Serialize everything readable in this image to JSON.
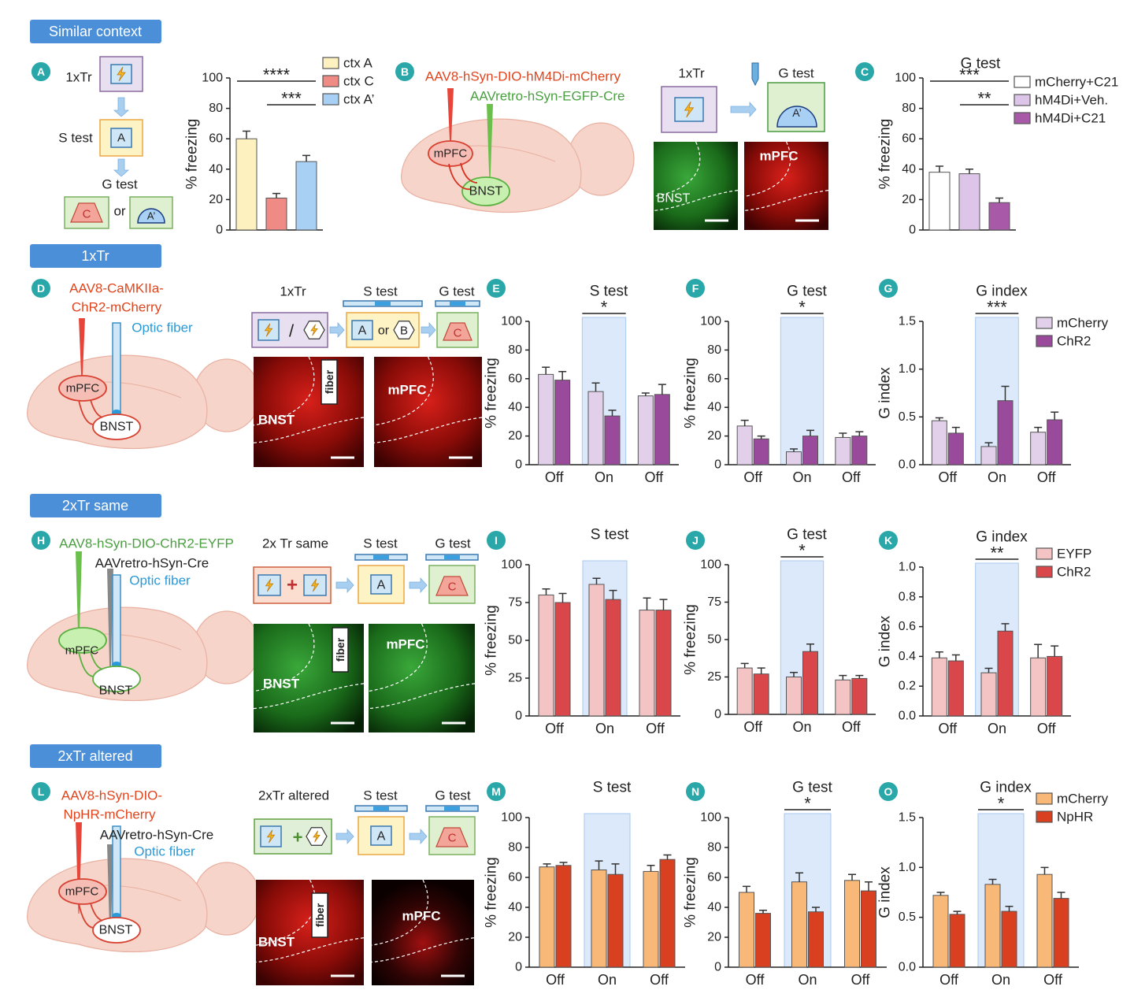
{
  "sections": [
    "Similar context",
    "1xTr",
    "2xTr same",
    "2xTr altered"
  ],
  "diagrams": {
    "A": {
      "panel": "A",
      "steps": [
        "1xTr",
        "S test",
        "G test"
      ],
      "contexts": [
        "A",
        "C",
        "A’"
      ],
      "or": "or"
    },
    "B": {
      "panel": "B",
      "vectors": [
        "AAV8-hSyn-DIO-hM4Di-mCherry",
        "AAVretro-hSyn-EGFP-Cre"
      ],
      "regions": [
        "mPFC",
        "BNST"
      ],
      "steps": [
        "1xTr",
        "G test"
      ],
      "context": "A’",
      "image_labels": [
        "BNST",
        "mPFC"
      ]
    },
    "D": {
      "panel": "D",
      "vectors": [
        "AAV8-CaMKIIa-",
        "ChR2-mCherry"
      ],
      "fiber": "Optic fiber",
      "regions": [
        "mPFC",
        "BNST"
      ],
      "steps": [
        "1xTr",
        "S test",
        "G test"
      ],
      "symbols": [
        "/",
        "or"
      ],
      "contexts": [
        "A",
        "B",
        "C"
      ],
      "image_labels": [
        "fiber",
        "BNST",
        "mPFC"
      ]
    },
    "H": {
      "panel": "H",
      "vectors": [
        "AAV8-hSyn-DIO-ChR2-EYFP",
        "AAVretro-hSyn-Cre"
      ],
      "fiber": "Optic fiber",
      "regions": [
        "mPFC",
        "BNST"
      ],
      "steps": [
        "2x Tr same",
        "S test",
        "G test"
      ],
      "symbols": [
        "+"
      ],
      "contexts": [
        "A",
        "C"
      ],
      "image_labels": [
        "fiber",
        "BNST",
        "mPFC"
      ]
    },
    "L": {
      "panel": "L",
      "vectors": [
        "AAV8-hSyn-DIO-",
        "NpHR-mCherry",
        "AAVretro-hSyn-Cre"
      ],
      "fiber": "Optic fiber",
      "regions": [
        "mPFC",
        "BNST"
      ],
      "steps": [
        "2xTr altered",
        "S test",
        "G test"
      ],
      "symbols": [
        "+"
      ],
      "contexts": [
        "A",
        "C"
      ],
      "image_labels": [
        "fiber",
        "BNST",
        "mPFC"
      ]
    }
  },
  "chart_data": [
    {
      "type": "bar",
      "panel": "A",
      "ylabel": "% freezing",
      "categories": [
        null
      ],
      "ylim": [
        0,
        100
      ],
      "yticks": [
        0,
        20,
        40,
        60,
        80,
        100
      ],
      "legend": true,
      "series": [
        {
          "name": "ctx A",
          "color": "#fdf1c0",
          "values": [
            60
          ],
          "errors": [
            5
          ]
        },
        {
          "name": "ctx C",
          "color": "#f08a84",
          "values": [
            21
          ],
          "errors": [
            3
          ]
        },
        {
          "name": "ctx A’",
          "color": "#a8cff4",
          "values": [
            45
          ],
          "errors": [
            4
          ]
        }
      ],
      "annotations": [
        "****",
        "***"
      ]
    },
    {
      "type": "bar",
      "panel": "C",
      "title": "G test",
      "ylabel": "% freezing",
      "categories": [
        null
      ],
      "ylim": [
        0,
        100
      ],
      "yticks": [
        0,
        20,
        40,
        60,
        80,
        100
      ],
      "legend": true,
      "series": [
        {
          "name": "mCherry+C21",
          "color": "#ffffff",
          "values": [
            38
          ],
          "errors": [
            4
          ]
        },
        {
          "name": "hM4Di+Veh.",
          "color": "#dcc5e8",
          "values": [
            37
          ],
          "errors": [
            3
          ]
        },
        {
          "name": "hM4Di+C21",
          "color": "#a85aa8",
          "values": [
            18
          ],
          "errors": [
            3
          ]
        }
      ],
      "annotations": [
        "***",
        "**"
      ]
    },
    {
      "type": "bar",
      "panel": "E",
      "title": "S test",
      "ylabel": "% freezing",
      "categories": [
        "Off",
        "On",
        "Off"
      ],
      "ylim": [
        0,
        100
      ],
      "yticks": [
        0,
        20,
        40,
        60,
        80,
        100
      ],
      "legend": false,
      "series": [
        {
          "name": "mCherry",
          "color": "#e2d0ea",
          "values": [
            63,
            51,
            48
          ],
          "errors": [
            5,
            6,
            2
          ]
        },
        {
          "name": "ChR2",
          "color": "#9a4a9a",
          "values": [
            59,
            34,
            49
          ],
          "errors": [
            6,
            4,
            7
          ]
        }
      ],
      "annotations": [
        "*"
      ]
    },
    {
      "type": "bar",
      "panel": "F",
      "title": "G test",
      "ylabel": "% freezing",
      "categories": [
        "Off",
        "On",
        "Off"
      ],
      "ylim": [
        0,
        100
      ],
      "yticks": [
        0,
        20,
        40,
        60,
        80,
        100
      ],
      "legend": false,
      "series": [
        {
          "name": "mCherry",
          "color": "#e2d0ea",
          "values": [
            27,
            9,
            19
          ],
          "errors": [
            4,
            2,
            3
          ]
        },
        {
          "name": "ChR2",
          "color": "#9a4a9a",
          "values": [
            18,
            20,
            20
          ],
          "errors": [
            2,
            4,
            3
          ]
        }
      ],
      "annotations": [
        "*"
      ]
    },
    {
      "type": "bar",
      "panel": "G",
      "title": "G index",
      "ylabel": "G index",
      "categories": [
        "Off",
        "On",
        "Off"
      ],
      "ylim": [
        0,
        1.5
      ],
      "yticks": [
        {
          "value": 0,
          "label": "0.0"
        },
        0.5,
        {
          "value": 1,
          "label": "1.0"
        },
        1.5
      ],
      "legend": true,
      "series": [
        {
          "name": "mCherry",
          "color": "#e2d0ea",
          "values": [
            0.46,
            0.19,
            0.34
          ],
          "errors": [
            0.03,
            0.04,
            0.05
          ]
        },
        {
          "name": "ChR2",
          "color": "#9a4a9a",
          "values": [
            0.33,
            0.67,
            0.47
          ],
          "errors": [
            0.06,
            0.15,
            0.08
          ]
        }
      ],
      "annotations": [
        "***"
      ]
    },
    {
      "type": "bar",
      "panel": "I",
      "title": "S test",
      "ylabel": "% freezing",
      "categories": [
        "Off",
        "On",
        "Off"
      ],
      "ylim": [
        0,
        100
      ],
      "yticks": [
        0,
        25,
        50,
        75,
        100
      ],
      "legend": false,
      "series": [
        {
          "name": "EYFP",
          "color": "#f4c4c4",
          "values": [
            80,
            87,
            70
          ],
          "errors": [
            4,
            4,
            8
          ]
        },
        {
          "name": "ChR2",
          "color": "#d9474a",
          "values": [
            75,
            77,
            70
          ],
          "errors": [
            6,
            6,
            7
          ]
        }
      ],
      "annotations": []
    },
    {
      "type": "bar",
      "panel": "J",
      "title": "G test",
      "ylabel": "% freezing",
      "categories": [
        "Off",
        "On",
        "Off"
      ],
      "ylim": [
        0,
        100
      ],
      "yticks": [
        0,
        25,
        50,
        75,
        100
      ],
      "legend": false,
      "series": [
        {
          "name": "EYFP",
          "color": "#f4c4c4",
          "values": [
            31,
            25,
            23
          ],
          "errors": [
            3,
            3,
            3
          ]
        },
        {
          "name": "ChR2",
          "color": "#d9474a",
          "values": [
            27,
            42,
            24
          ],
          "errors": [
            4,
            5,
            2
          ]
        }
      ],
      "annotations": [
        "*"
      ]
    },
    {
      "type": "bar",
      "panel": "K",
      "title": "G index",
      "ylabel": "G index",
      "categories": [
        "Off",
        "On",
        "Off"
      ],
      "ylim": [
        0,
        1
      ],
      "yticks": [
        {
          "value": 0,
          "label": "0.0"
        },
        0.2,
        0.4,
        0.6,
        0.8,
        {
          "value": 1,
          "label": "1.0"
        }
      ],
      "legend": true,
      "series": [
        {
          "name": "EYFP",
          "color": "#f4c4c4",
          "values": [
            0.39,
            0.29,
            0.39
          ],
          "errors": [
            0.04,
            0.03,
            0.09
          ]
        },
        {
          "name": "ChR2",
          "color": "#d9474a",
          "values": [
            0.37,
            0.57,
            0.4
          ],
          "errors": [
            0.04,
            0.05,
            0.07
          ]
        }
      ],
      "annotations": [
        "**"
      ]
    },
    {
      "type": "bar",
      "panel": "M",
      "title": "S test",
      "ylabel": "% freezing",
      "categories": [
        "Off",
        "On",
        "Off"
      ],
      "ylim": [
        0,
        100
      ],
      "yticks": [
        0,
        20,
        40,
        60,
        80,
        100
      ],
      "legend": false,
      "series": [
        {
          "name": "mCherry",
          "color": "#f8b878",
          "values": [
            67,
            65,
            64
          ],
          "errors": [
            2,
            6,
            4
          ]
        },
        {
          "name": "NpHR",
          "color": "#d84020",
          "values": [
            68,
            62,
            72
          ],
          "errors": [
            2,
            7,
            3
          ]
        }
      ],
      "annotations": []
    },
    {
      "type": "bar",
      "panel": "N",
      "title": "G test",
      "ylabel": "% freezing",
      "categories": [
        "Off",
        "On",
        "Off"
      ],
      "ylim": [
        0,
        100
      ],
      "yticks": [
        0,
        20,
        40,
        60,
        80,
        100
      ],
      "legend": false,
      "series": [
        {
          "name": "mCherry",
          "color": "#f8b878",
          "values": [
            50,
            57,
            58
          ],
          "errors": [
            4,
            6,
            4
          ]
        },
        {
          "name": "NpHR",
          "color": "#d84020",
          "values": [
            36,
            37,
            51
          ],
          "errors": [
            2,
            3,
            6
          ]
        }
      ],
      "annotations": [
        "*"
      ]
    },
    {
      "type": "bar",
      "panel": "O",
      "title": "G index",
      "ylabel": "G index",
      "categories": [
        "Off",
        "On",
        "Off"
      ],
      "ylim": [
        0,
        1.5
      ],
      "yticks": [
        {
          "value": 0,
          "label": "0.0"
        },
        0.5,
        {
          "value": 1,
          "label": "1.0"
        },
        1.5
      ],
      "legend": true,
      "series": [
        {
          "name": "mCherry",
          "color": "#f8b878",
          "values": [
            0.72,
            0.83,
            0.93
          ],
          "errors": [
            0.03,
            0.05,
            0.07
          ]
        },
        {
          "name": "NpHR",
          "color": "#d84020",
          "values": [
            0.53,
            0.56,
            0.69
          ],
          "errors": [
            0.03,
            0.05,
            0.06
          ]
        }
      ],
      "annotations": [
        "*"
      ]
    }
  ]
}
